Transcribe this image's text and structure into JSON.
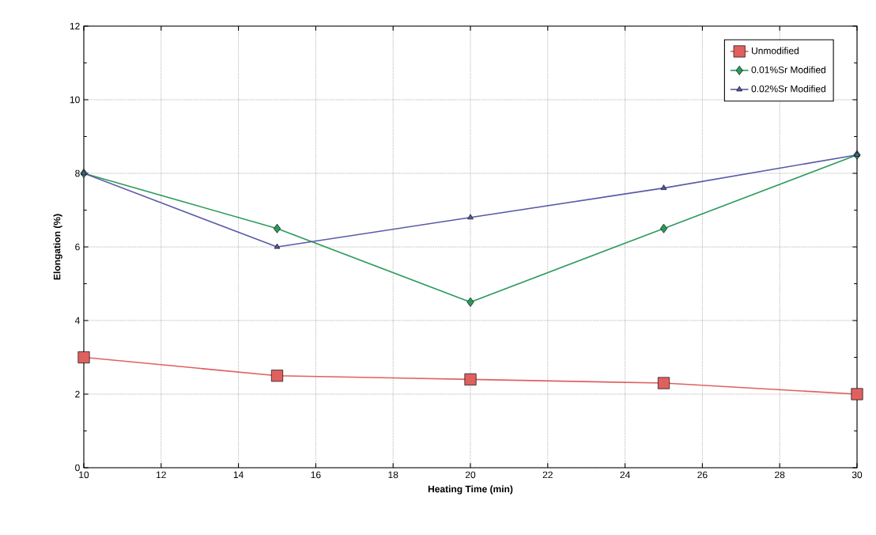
{
  "chart_data": {
    "type": "line",
    "xlabel": "Heating Time (min)",
    "ylabel": "Elongation (%)",
    "x": [
      10,
      15,
      20,
      25,
      30
    ],
    "series": [
      {
        "name": "Unmodified",
        "color": "#e06060",
        "marker": "square",
        "values": [
          3.0,
          2.5,
          2.4,
          2.3,
          2.0
        ]
      },
      {
        "name": "0.01%Sr Modified",
        "color": "#2a9a5a",
        "marker": "diamond",
        "values": [
          8.0,
          6.5,
          4.5,
          6.5,
          8.5
        ]
      },
      {
        "name": "0.02%Sr Modified",
        "color": "#5a5aa8",
        "marker": "triangle",
        "values": [
          8.0,
          6.0,
          6.8,
          7.6,
          8.5
        ]
      }
    ],
    "xlim": [
      10,
      30
    ],
    "xticks": [
      10,
      12,
      14,
      16,
      18,
      20,
      22,
      24,
      26,
      28,
      30
    ],
    "ylim": [
      0,
      12
    ],
    "yticks": [
      0,
      2,
      4,
      6,
      8,
      10,
      12
    ],
    "grid": true,
    "legend": "top right",
    "line_style": "solid"
  }
}
